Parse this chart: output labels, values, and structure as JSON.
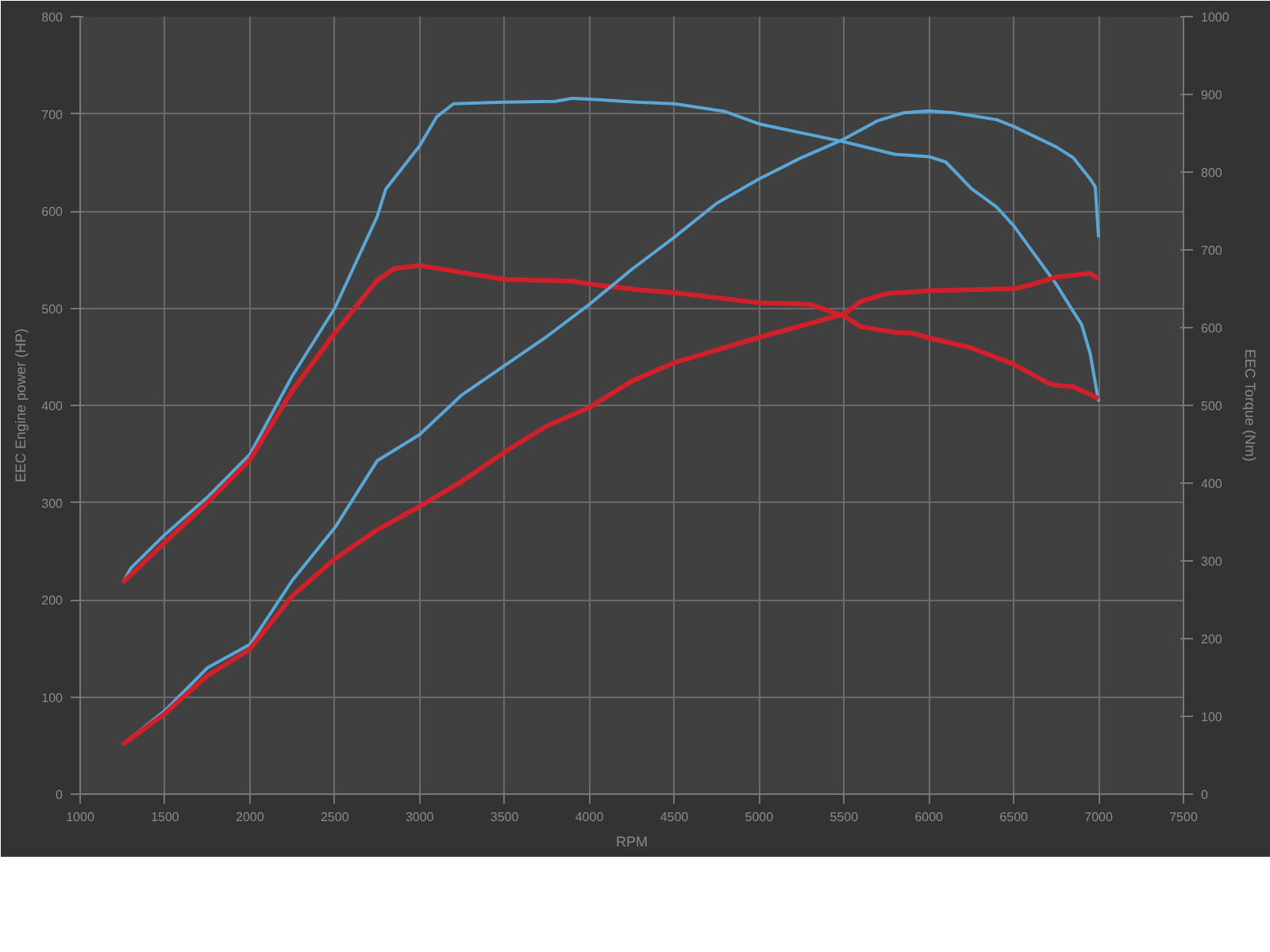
{
  "chart_data": {
    "type": "line",
    "xlabel": "RPM",
    "ylabel": "EEC Engine power (HP)",
    "y2label": "EEC Torque (Nm)",
    "xlim": [
      1000,
      7500
    ],
    "xticks": [
      1000,
      1500,
      2000,
      2500,
      3000,
      3500,
      4000,
      4500,
      5000,
      5500,
      6000,
      6500,
      7000,
      7500
    ],
    "ylim": [
      0,
      800
    ],
    "yticks": [
      0,
      100,
      200,
      300,
      400,
      500,
      600,
      700,
      800
    ],
    "y2lim": [
      0,
      1000
    ],
    "y2ticks": [
      0,
      100,
      200,
      300,
      400,
      500,
      600,
      700,
      800,
      900,
      1000
    ],
    "grid": true,
    "line_style": "solid",
    "marker": "none",
    "series": [
      {
        "color": "#5aa6d6",
        "axis": "y2",
        "x": [
          1250,
          1300,
          1500,
          1750,
          2000,
          2250,
          2500,
          2750,
          2800,
          3000,
          3100,
          3200,
          3500,
          3800,
          3900,
          4000,
          4277,
          4500,
          4800,
          5000,
          5500,
          5800,
          6000,
          6100,
          6250,
          6400,
          6500,
          6750,
          6850,
          6900,
          6950,
          7000
        ],
        "values": [
          272,
          291,
          334,
          382,
          437,
          538,
          625,
          743,
          778,
          834,
          871,
          888,
          890,
          891,
          895,
          894,
          890,
          888,
          878,
          862,
          839,
          823,
          820,
          813,
          779,
          755,
          731,
          656,
          621,
          604,
          567,
          505
        ]
      },
      {
        "color": "#d0202a",
        "axis": "y2",
        "x": [
          1250,
          1500,
          1750,
          2000,
          2250,
          2500,
          2750,
          2850,
          3000,
          3500,
          3900,
          4000,
          4277,
          4500,
          5000,
          5300,
          5500,
          5600,
          5800,
          5900,
          6000,
          6250,
          6500,
          6700,
          6750,
          6850,
          7000
        ],
        "values": [
          272,
          324,
          375,
          430,
          519,
          593,
          661,
          676,
          680,
          662,
          660,
          656,
          649,
          645,
          632,
          630,
          615,
          601,
          594,
          593,
          587,
          574,
          553,
          529,
          526,
          524,
          509
        ]
      },
      {
        "color": "#5aa6d6",
        "x": [
          1250,
          1500,
          1750,
          2000,
          2250,
          2500,
          2750,
          3000,
          3250,
          3500,
          3750,
          4000,
          4250,
          4500,
          4750,
          5000,
          5250,
          5500,
          5700,
          5850,
          6000,
          6150,
          6400,
          6500,
          6750,
          6850,
          6950,
          6980,
          7000
        ],
        "values": [
          51,
          86,
          130,
          154,
          220,
          274,
          343,
          370,
          411,
          441,
          471,
          504,
          540,
          573,
          608,
          633,
          655,
          674,
          693,
          701,
          703,
          701,
          694,
          687,
          666,
          655,
          633,
          625,
          573
        ]
      },
      {
        "color": "#d0202a",
        "x": [
          1250,
          1500,
          1750,
          2000,
          2250,
          2500,
          2750,
          3000,
          3250,
          3500,
          3750,
          4000,
          4250,
          4500,
          5000,
          5500,
          5600,
          5750,
          6000,
          6500,
          6600,
          6750,
          6900,
          6950,
          7000
        ],
        "values": [
          51,
          83,
          122,
          149,
          204,
          242,
          272,
          296,
          322,
          352,
          379,
          398,
          425,
          444,
          470,
          494,
          507,
          515,
          518,
          520,
          524,
          532,
          535,
          536,
          530
        ]
      }
    ]
  }
}
